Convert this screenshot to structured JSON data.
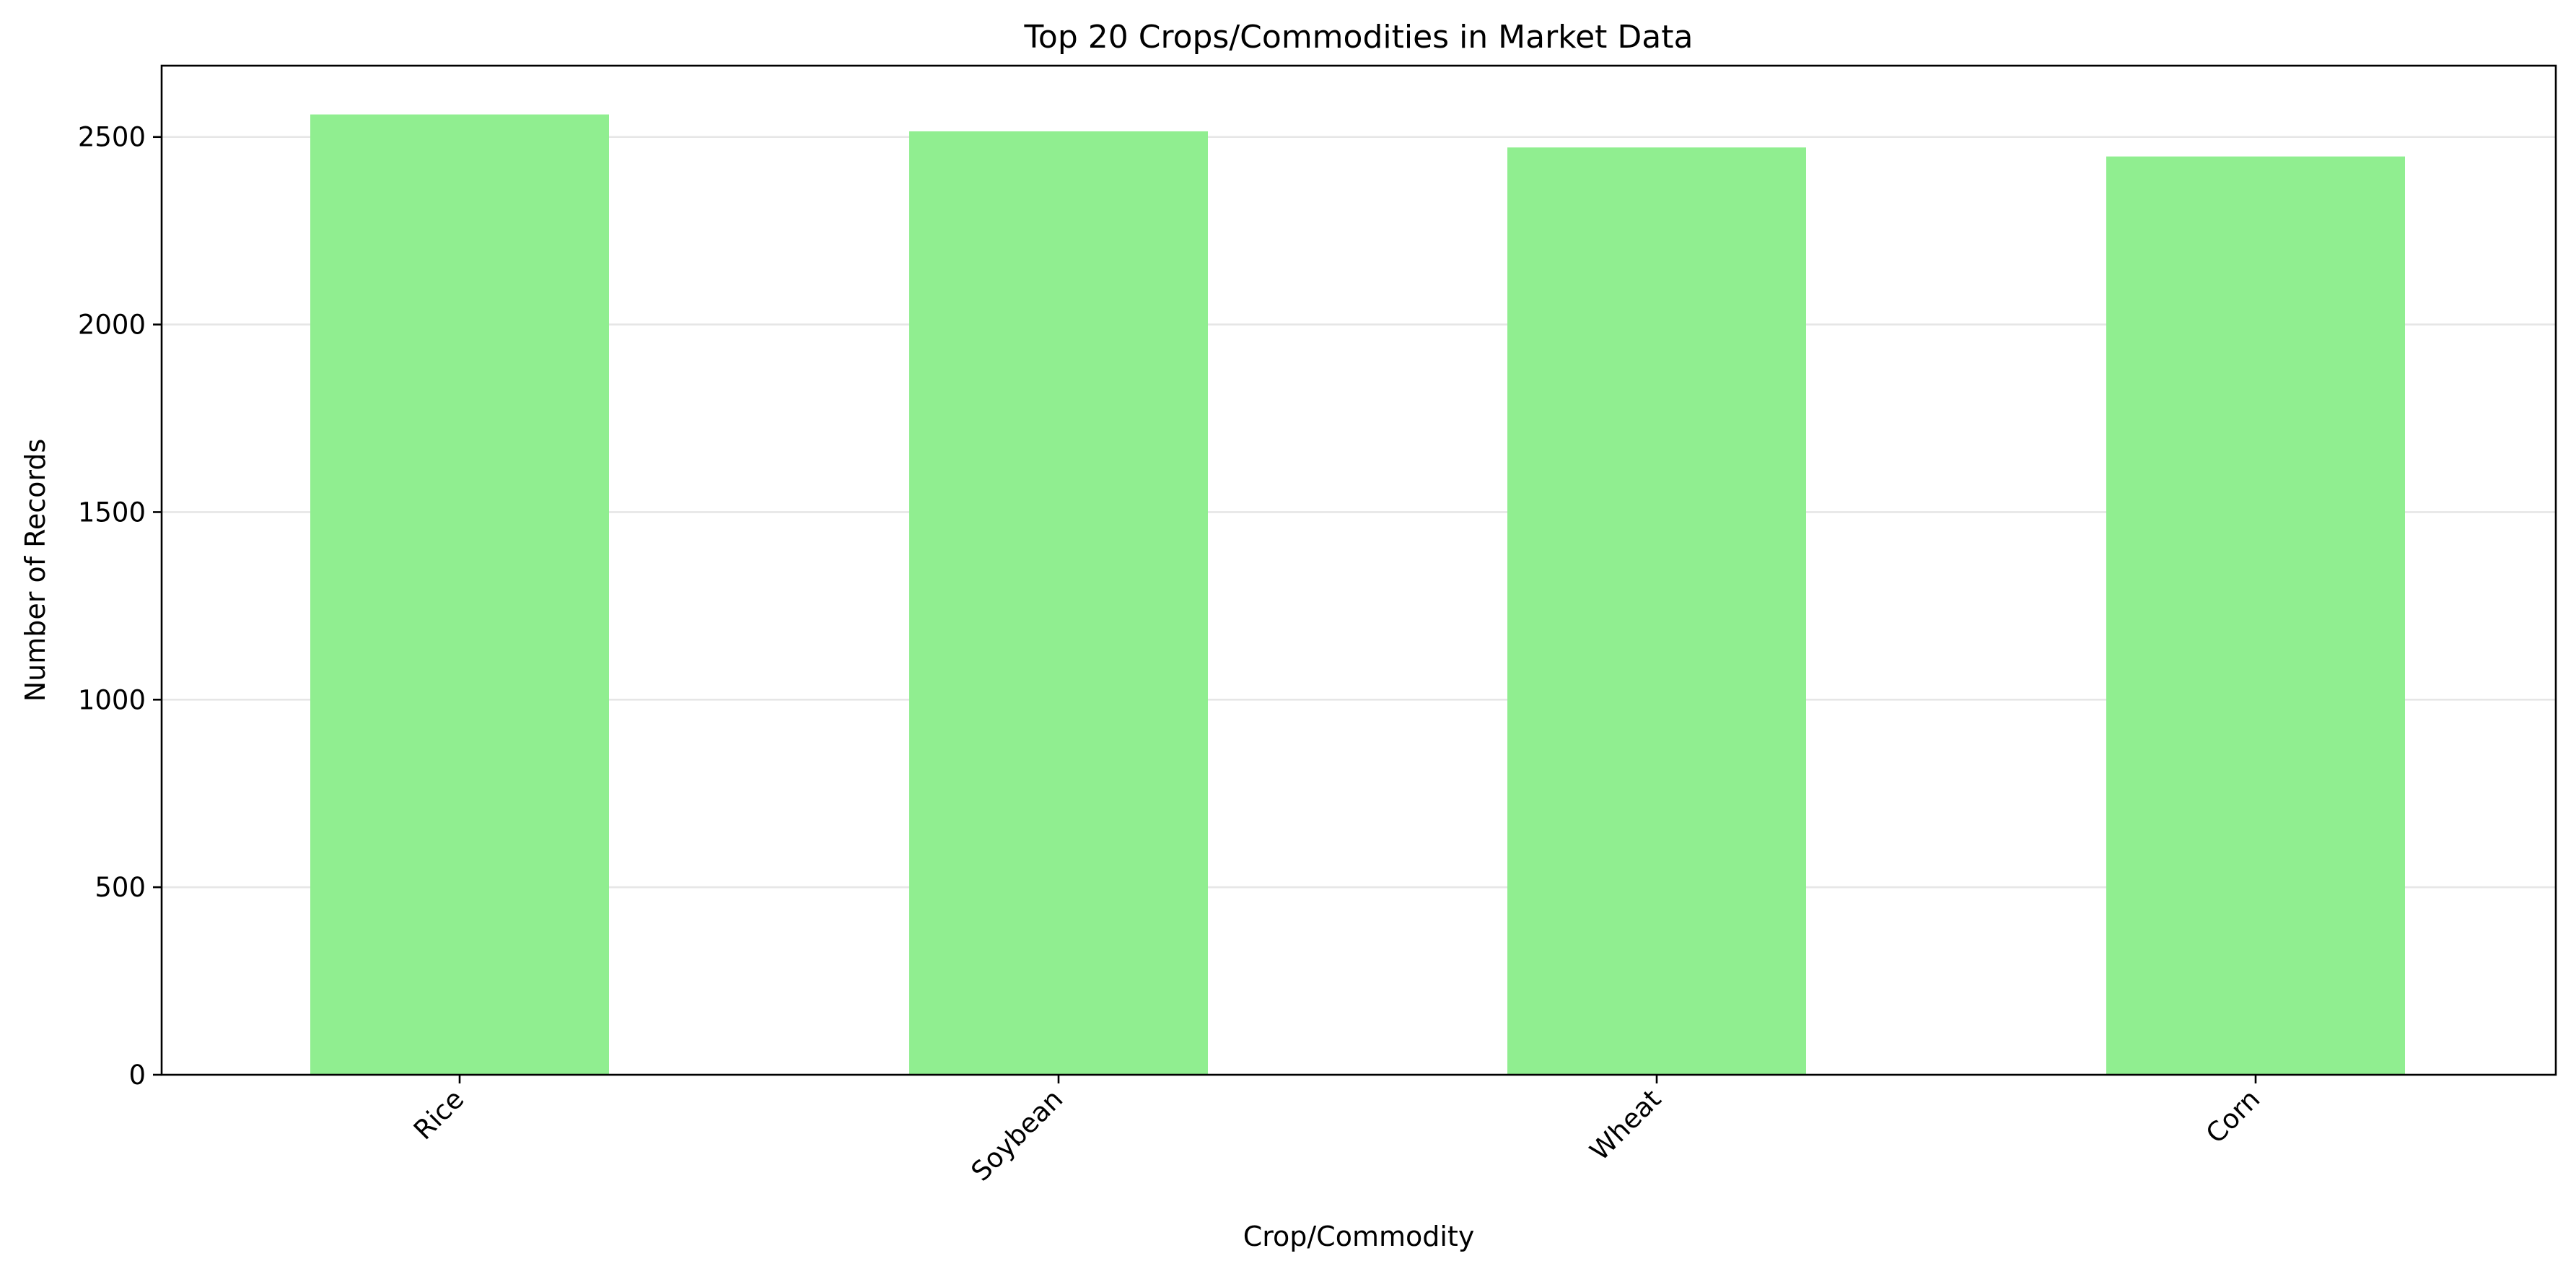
{
  "chart_data": {
    "type": "bar",
    "title": "Top 20 Crops/Commodities in Market Data",
    "xlabel": "Crop/Commodity",
    "ylabel": "Number of Records",
    "categories": [
      "Rice",
      "Soybean",
      "Wheat",
      "Corn"
    ],
    "values": [
      2560,
      2515,
      2472,
      2448
    ],
    "ylim": [
      0,
      2690
    ],
    "yticks": [
      0,
      500,
      1000,
      1500,
      2000,
      2500
    ],
    "grid": "y-axis",
    "legend": "none",
    "bar_color": "#90ee90"
  }
}
